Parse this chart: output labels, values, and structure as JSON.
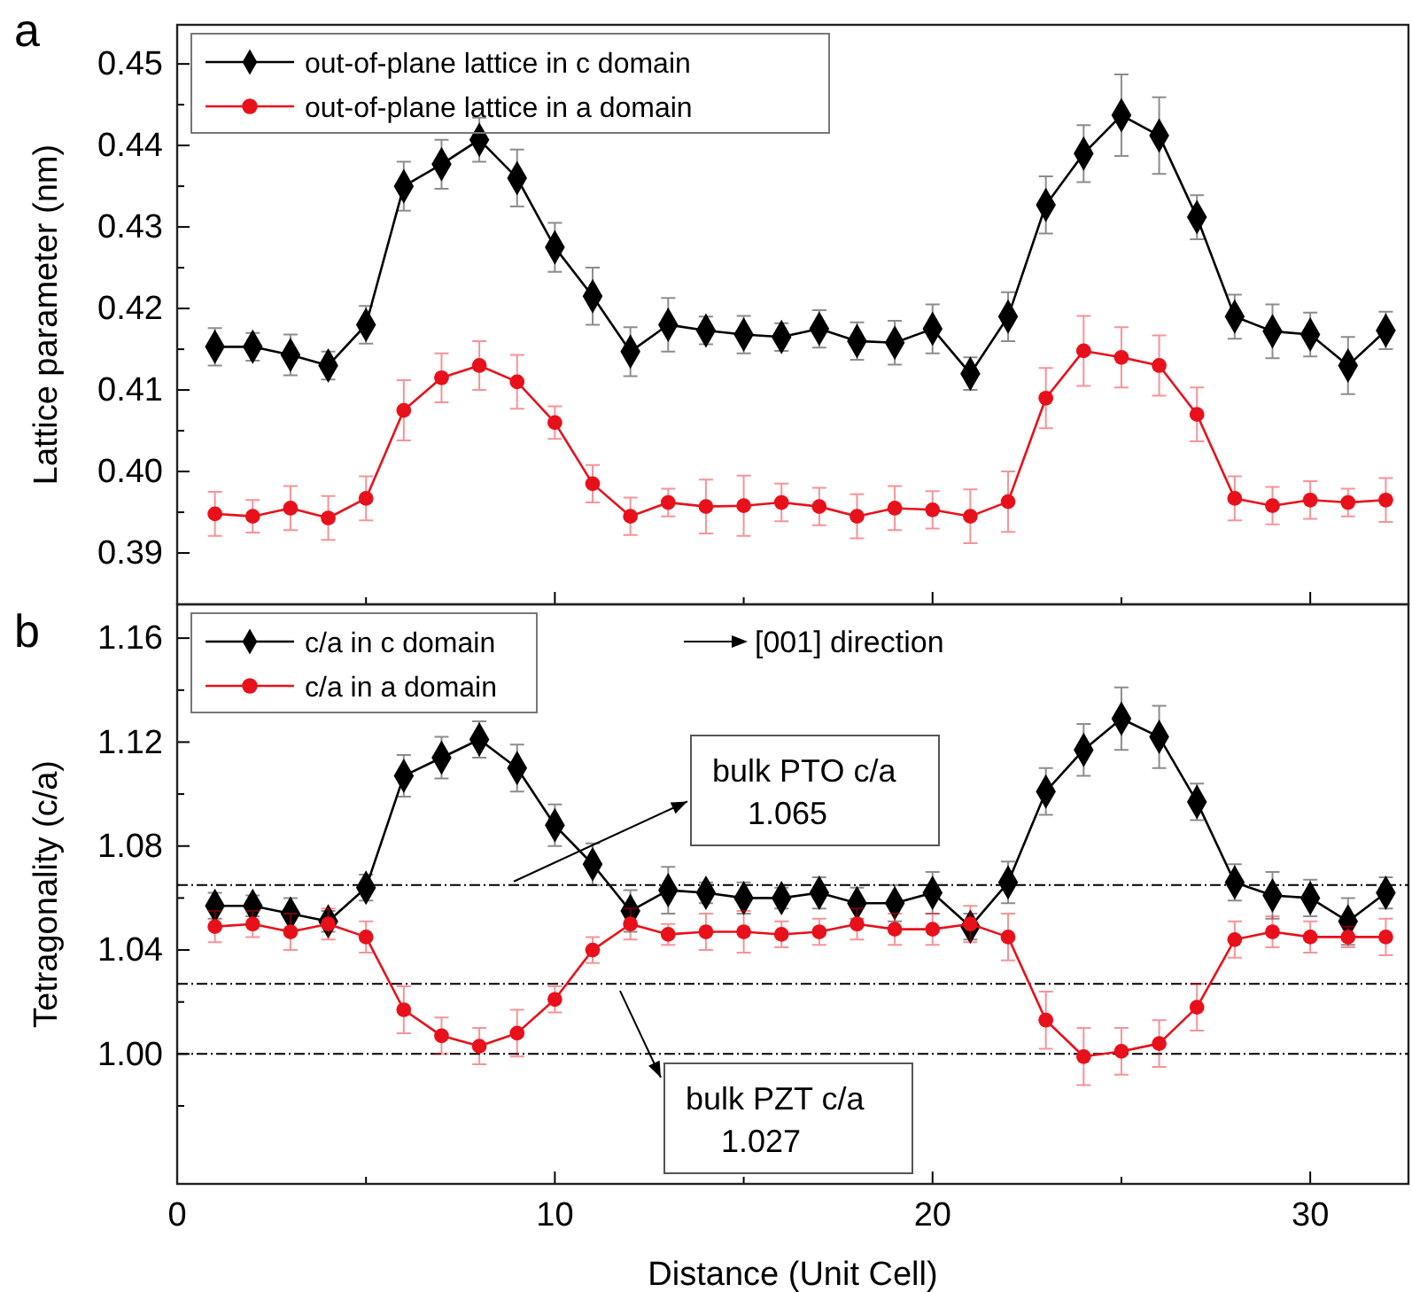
{
  "chart_data": [
    {
      "type": "line",
      "title": "a",
      "ylabel": "Lattice parameter (nm)",
      "xlim": [
        0,
        32.6
      ],
      "ylim": [
        0.3837,
        0.4548
      ],
      "xticks": [
        0,
        {
          "value": 5,
          "label": null
        },
        10,
        {
          "value": 15,
          "label": null
        },
        20,
        {
          "value": 25,
          "label": null
        },
        30
      ],
      "yticks": [
        {
          "value": 0.39,
          "label": "0.39"
        },
        {
          "value": 0.395,
          "label": null
        },
        {
          "value": 0.4,
          "label": "0.40"
        },
        {
          "value": 0.405,
          "label": null
        },
        {
          "value": 0.41,
          "label": "0.41"
        },
        {
          "value": 0.415,
          "label": null
        },
        {
          "value": 0.42,
          "label": "0.42"
        },
        {
          "value": 0.425,
          "label": null
        },
        {
          "value": 0.43,
          "label": "0.43"
        },
        {
          "value": 0.435,
          "label": null
        },
        {
          "value": 0.44,
          "label": "0.44"
        },
        {
          "value": 0.445,
          "label": null
        },
        {
          "value": 0.45,
          "label": "0.45"
        }
      ],
      "tick_labels": "y",
      "legend": "top left",
      "grid": false,
      "x": [
        1,
        2,
        3,
        4,
        5,
        6,
        7,
        8,
        9,
        10,
        11,
        12,
        13,
        14,
        15,
        16,
        17,
        18,
        19,
        20,
        21,
        22,
        23,
        24,
        25,
        26,
        27,
        28,
        29,
        30,
        31,
        32
      ],
      "series": [
        {
          "name": "out-of-plane lattice in c domain",
          "color": "#000000",
          "marker": "diamond",
          "values": [
            0.4153,
            0.4153,
            0.4143,
            0.413,
            0.418,
            0.435,
            0.4377,
            0.4407,
            0.436,
            0.4275,
            0.4215,
            0.4147,
            0.418,
            0.4173,
            0.4168,
            0.4165,
            0.4175,
            0.416,
            0.4158,
            0.4175,
            0.412,
            0.419,
            0.4327,
            0.439,
            0.4437,
            0.4412,
            0.4312,
            0.419,
            0.4172,
            0.4168,
            0.413,
            0.4173
          ],
          "errors": [
            0.0023,
            0.0017,
            0.0025,
            0.0017,
            0.0023,
            0.003,
            0.003,
            0.0027,
            0.0035,
            0.003,
            0.0035,
            0.003,
            0.0033,
            0.0017,
            0.0023,
            0.0017,
            0.0023,
            0.0023,
            0.0027,
            0.003,
            0.002,
            0.003,
            0.0035,
            0.0035,
            0.005,
            0.0047,
            0.0027,
            0.0027,
            0.0033,
            0.0027,
            0.0035,
            0.0023
          ]
        },
        {
          "name": "out-of-plane lattice in a domain",
          "color": "#e8101a",
          "marker": "circle",
          "values": [
            0.3948,
            0.3945,
            0.3955,
            0.3943,
            0.3967,
            0.4075,
            0.4115,
            0.413,
            0.411,
            0.406,
            0.3985,
            0.3945,
            0.3962,
            0.3957,
            0.3958,
            0.3962,
            0.3957,
            0.3945,
            0.3955,
            0.3953,
            0.3945,
            0.3963,
            0.409,
            0.4148,
            0.414,
            0.413,
            0.407,
            0.3967,
            0.3958,
            0.3965,
            0.3962,
            0.3965
          ],
          "errors": [
            0.0027,
            0.002,
            0.0027,
            0.0027,
            0.0027,
            0.0037,
            0.003,
            0.003,
            0.0033,
            0.002,
            0.0023,
            0.0023,
            0.0017,
            0.0033,
            0.0037,
            0.0023,
            0.0023,
            0.0027,
            0.0027,
            0.0023,
            0.0033,
            0.0037,
            0.0037,
            0.0043,
            0.0037,
            0.0037,
            0.0033,
            0.0027,
            0.0023,
            0.0023,
            0.0017,
            0.0027
          ]
        }
      ]
    },
    {
      "type": "line",
      "title": "b",
      "xlabel": "Distance (Unit Cell)",
      "ylabel": "Tetragonality (c/a)",
      "xlim": [
        0,
        32.6
      ],
      "ylim": [
        0.95,
        1.173
      ],
      "xticks": [
        0,
        {
          "value": 5,
          "label": null
        },
        10,
        {
          "value": 15,
          "label": null
        },
        20,
        {
          "value": 25,
          "label": null
        },
        30
      ],
      "yticks": [
        {
          "value": 0.98,
          "label": null
        },
        {
          "value": 1.0,
          "label": "1.00"
        },
        {
          "value": 1.02,
          "label": null
        },
        {
          "value": 1.04,
          "label": "1.04"
        },
        {
          "value": 1.06,
          "label": null
        },
        {
          "value": 1.08,
          "label": "1.08"
        },
        {
          "value": 1.1,
          "label": null
        },
        {
          "value": 1.12,
          "label": "1.12"
        },
        {
          "value": 1.14,
          "label": null
        },
        {
          "value": 1.16,
          "label": "1.16"
        }
      ],
      "legend": "top left",
      "grid": false,
      "annotations": [
        "[001] direction"
      ],
      "ref_lines": [
        {
          "axis": "y",
          "value": 1.065,
          "label": "bulk PTO c/a 1.065",
          "color": "#000000",
          "line_style": "dashdot"
        },
        {
          "axis": "y",
          "value": 1.027,
          "label": "bulk PZT c/a 1.027",
          "color": "#000000",
          "line_style": "dashdot"
        },
        {
          "axis": "y",
          "value": 1.0,
          "color": "#000000",
          "line_style": "dashdot"
        }
      ],
      "x": [
        1,
        2,
        3,
        4,
        5,
        6,
        7,
        8,
        9,
        10,
        11,
        12,
        13,
        14,
        15,
        16,
        17,
        18,
        19,
        20,
        21,
        22,
        23,
        24,
        25,
        26,
        27,
        28,
        29,
        30,
        31,
        32
      ],
      "series": [
        {
          "name": "c/a in c domain",
          "color": "#000000",
          "marker": "diamond",
          "values": [
            1.057,
            1.057,
            1.054,
            1.051,
            1.064,
            1.107,
            1.114,
            1.121,
            1.11,
            1.088,
            1.073,
            1.055,
            1.063,
            1.062,
            1.06,
            1.06,
            1.062,
            1.058,
            1.058,
            1.062,
            1.049,
            1.066,
            1.101,
            1.117,
            1.129,
            1.122,
            1.097,
            1.066,
            1.061,
            1.06,
            1.051,
            1.062
          ],
          "errors": [
            0.005,
            0.004,
            0.006,
            0.004,
            0.005,
            0.008,
            0.008,
            0.007,
            0.009,
            0.008,
            0.008,
            0.008,
            0.009,
            0.004,
            0.006,
            0.004,
            0.006,
            0.006,
            0.007,
            0.008,
            0.005,
            0.008,
            0.009,
            0.01,
            0.012,
            0.012,
            0.007,
            0.007,
            0.009,
            0.007,
            0.009,
            0.006
          ]
        },
        {
          "name": "c/a in a domain",
          "color": "#e8101a",
          "marker": "circle",
          "values": [
            1.049,
            1.05,
            1.047,
            1.05,
            1.045,
            1.017,
            1.007,
            1.003,
            1.008,
            1.021,
            1.04,
            1.05,
            1.046,
            1.047,
            1.047,
            1.046,
            1.047,
            1.05,
            1.048,
            1.048,
            1.05,
            1.045,
            1.013,
            0.999,
            1.001,
            1.004,
            1.018,
            1.044,
            1.047,
            1.045,
            1.045,
            1.045
          ],
          "errors": [
            0.006,
            0.005,
            0.007,
            0.006,
            0.006,
            0.009,
            0.007,
            0.007,
            0.009,
            0.005,
            0.005,
            0.006,
            0.004,
            0.007,
            0.008,
            0.005,
            0.005,
            0.006,
            0.006,
            0.006,
            0.007,
            0.009,
            0.011,
            0.011,
            0.009,
            0.009,
            0.009,
            0.007,
            0.006,
            0.006,
            0.004,
            0.007
          ]
        }
      ]
    }
  ]
}
